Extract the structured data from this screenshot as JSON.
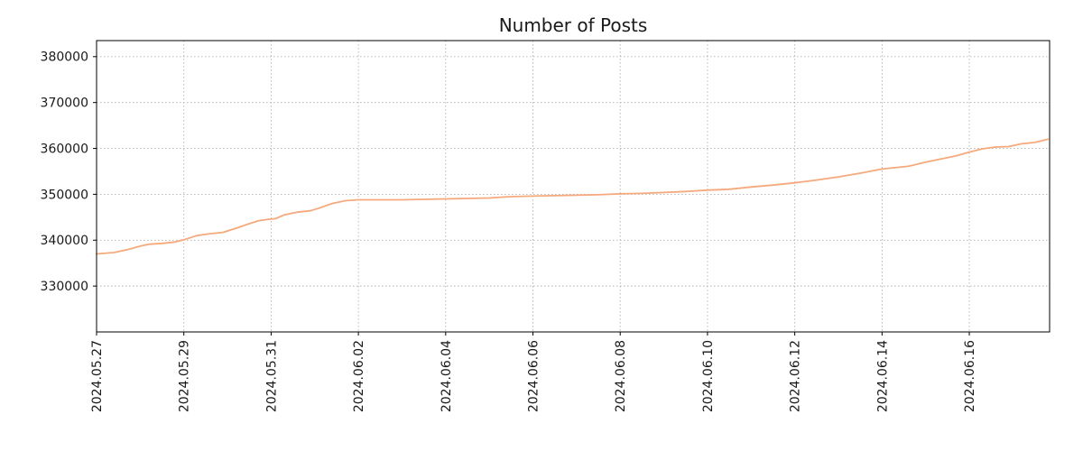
{
  "chart_data": {
    "type": "line",
    "title": "Number of Posts",
    "xlabel": "",
    "ylabel": "",
    "legend": "none",
    "grid": "dotted",
    "xlim": [
      0,
      21.84
    ],
    "ylim": [
      320000,
      383500
    ],
    "y_ticks": [
      330000,
      340000,
      350000,
      360000,
      370000,
      380000
    ],
    "x_ticks": [
      {
        "pos": 0,
        "label": "2024.05.27"
      },
      {
        "pos": 2,
        "label": "2024.05.29"
      },
      {
        "pos": 4,
        "label": "2024.05.31"
      },
      {
        "pos": 6,
        "label": "2024.06.02"
      },
      {
        "pos": 8,
        "label": "2024.06.04"
      },
      {
        "pos": 10,
        "label": "2024.06.06"
      },
      {
        "pos": 12,
        "label": "2024.06.08"
      },
      {
        "pos": 14,
        "label": "2024.06.10"
      },
      {
        "pos": 16,
        "label": "2024.06.12"
      },
      {
        "pos": 18,
        "label": "2024.06.14"
      },
      {
        "pos": 20,
        "label": "2024.06.16"
      }
    ],
    "series": [
      {
        "name": "number-of-posts",
        "color": "#f5a97c",
        "points": [
          [
            0.0,
            337000
          ],
          [
            0.4,
            337300
          ],
          [
            0.7,
            337900
          ],
          [
            1.0,
            338700
          ],
          [
            1.2,
            339100
          ],
          [
            1.5,
            339300
          ],
          [
            1.8,
            339600
          ],
          [
            2.0,
            340100
          ],
          [
            2.3,
            341000
          ],
          [
            2.6,
            341400
          ],
          [
            2.9,
            341700
          ],
          [
            3.2,
            342600
          ],
          [
            3.5,
            343600
          ],
          [
            3.7,
            344200
          ],
          [
            3.9,
            344500
          ],
          [
            4.1,
            344700
          ],
          [
            4.3,
            345500
          ],
          [
            4.6,
            346100
          ],
          [
            4.9,
            346400
          ],
          [
            5.1,
            347000
          ],
          [
            5.4,
            348000
          ],
          [
            5.7,
            348600
          ],
          [
            6.0,
            348800
          ],
          [
            6.5,
            348800
          ],
          [
            7.0,
            348800
          ],
          [
            7.5,
            348900
          ],
          [
            8.0,
            349000
          ],
          [
            8.5,
            349100
          ],
          [
            9.0,
            349200
          ],
          [
            9.3,
            349400
          ],
          [
            9.6,
            349500
          ],
          [
            10.0,
            349600
          ],
          [
            10.5,
            349700
          ],
          [
            11.0,
            349800
          ],
          [
            11.5,
            349900
          ],
          [
            12.0,
            350100
          ],
          [
            12.5,
            350200
          ],
          [
            13.0,
            350400
          ],
          [
            13.5,
            350600
          ],
          [
            14.0,
            350900
          ],
          [
            14.5,
            351100
          ],
          [
            15.0,
            351600
          ],
          [
            15.5,
            352000
          ],
          [
            16.0,
            352500
          ],
          [
            16.5,
            353100
          ],
          [
            17.0,
            353800
          ],
          [
            17.5,
            354600
          ],
          [
            18.0,
            355500
          ],
          [
            18.3,
            355800
          ],
          [
            18.6,
            356100
          ],
          [
            19.0,
            357000
          ],
          [
            19.4,
            357800
          ],
          [
            19.7,
            358400
          ],
          [
            20.0,
            359200
          ],
          [
            20.3,
            359900
          ],
          [
            20.6,
            360300
          ],
          [
            20.9,
            360400
          ],
          [
            21.2,
            361000
          ],
          [
            21.5,
            361300
          ],
          [
            21.8,
            362000
          ]
        ]
      }
    ],
    "axis_color": "#000000",
    "grid_color": "#b0b0b0",
    "tick_label_color": "#1a1a1a",
    "tick_font_size": 14
  }
}
